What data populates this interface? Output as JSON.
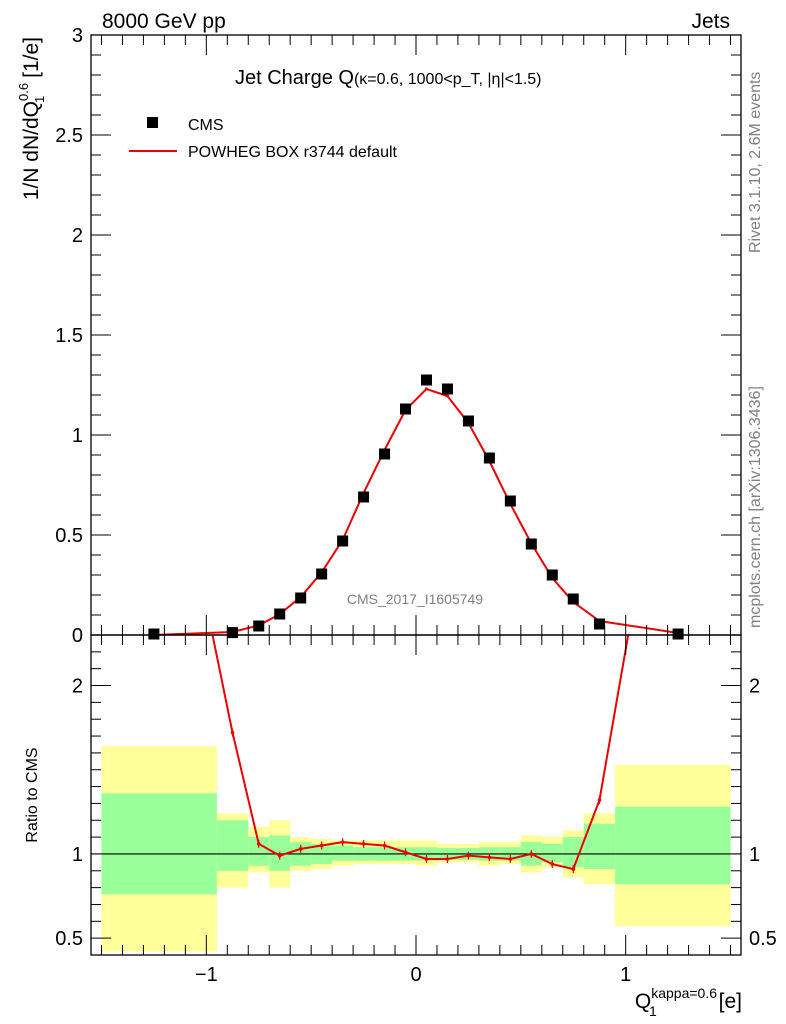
{
  "header": {
    "energy_label": "8000 GeV pp",
    "process_label": "Jets"
  },
  "side_labels": {
    "rivet": "Rivet 3.1.10,  2.6M events",
    "mcplots": "mcplots.cern.ch [arXiv:1306.3436]"
  },
  "watermark": "CMS_2017_I1605749",
  "chart_data": [
    {
      "type": "scatter",
      "panel": "main",
      "title": "Jet Charge Q",
      "title_cuts": "(κ=0.6, 1000<p_T, |η|<1.5)",
      "ylabel": "1/N dN/dQ_1^0.6 [1/e]",
      "xlim": [
        -1.55,
        1.55
      ],
      "ylim": [
        0,
        3
      ],
      "yticks": [
        0,
        0.5,
        1,
        1.5,
        2,
        2.5,
        3
      ],
      "ytick_labels": [
        "0",
        "0.5",
        "1",
        "1.5",
        "2",
        "2.5",
        "3"
      ],
      "legend": [
        "CMS",
        "POWHEG BOX r3744 default"
      ],
      "series": [
        {
          "name": "CMS",
          "marker": "square",
          "color": "#000000",
          "x": [
            -1.25,
            -0.875,
            -0.75,
            -0.65,
            -0.55,
            -0.45,
            -0.35,
            -0.25,
            -0.15,
            -0.05,
            0.05,
            0.15,
            0.25,
            0.35,
            0.45,
            0.55,
            0.65,
            0.75,
            0.875,
            1.25
          ],
          "y": [
            0.005,
            0.012,
            0.045,
            0.105,
            0.185,
            0.305,
            0.47,
            0.69,
            0.905,
            1.13,
            1.275,
            1.23,
            1.07,
            0.885,
            0.67,
            0.455,
            0.3,
            0.18,
            0.055,
            0.005
          ]
        },
        {
          "name": "POWHEG BOX r3744 default",
          "marker": "line",
          "color": "#ee0000",
          "x": [
            -1.25,
            -0.875,
            -0.75,
            -0.65,
            -0.55,
            -0.45,
            -0.35,
            -0.25,
            -0.15,
            -0.05,
            0.05,
            0.15,
            0.25,
            0.35,
            0.45,
            0.55,
            0.65,
            0.75,
            0.875,
            1.25
          ],
          "y": [
            0.0,
            0.015,
            0.048,
            0.104,
            0.19,
            0.313,
            0.475,
            0.71,
            0.925,
            1.125,
            1.23,
            1.195,
            1.06,
            0.87,
            0.655,
            0.458,
            0.285,
            0.165,
            0.07,
            0.01
          ]
        }
      ]
    },
    {
      "type": "line",
      "panel": "ratio",
      "ylabel": "Ratio to CMS",
      "xlabel": "Q_1^kappa=0.6 [e]",
      "xlim": [
        -1.55,
        1.55
      ],
      "ylim": [
        0.4,
        2.3
      ],
      "yticks": [
        0.5,
        1,
        2
      ],
      "ytick_labels": [
        "0.5",
        "1",
        "2"
      ],
      "xticks": [
        -1,
        0,
        1
      ],
      "xtick_labels": [
        "−1",
        "0",
        "1"
      ],
      "reference": 1,
      "bands": {
        "bin_edges": [
          -1.5,
          -0.95,
          -0.8,
          -0.7,
          -0.6,
          -0.5,
          -0.4,
          -0.3,
          -0.2,
          -0.1,
          0.0,
          0.1,
          0.2,
          0.3,
          0.4,
          0.5,
          0.6,
          0.7,
          0.8,
          0.95,
          1.5
        ],
        "inner_lo": [
          0.76,
          0.9,
          0.93,
          0.9,
          0.93,
          0.94,
          0.96,
          0.96,
          0.96,
          0.96,
          0.96,
          0.965,
          0.965,
          0.96,
          0.96,
          0.93,
          0.95,
          0.92,
          0.91,
          0.82
        ],
        "inner_hi": [
          1.36,
          1.2,
          1.1,
          1.11,
          1.07,
          1.06,
          1.05,
          1.04,
          1.04,
          1.04,
          1.04,
          1.035,
          1.035,
          1.04,
          1.04,
          1.07,
          1.06,
          1.1,
          1.18,
          1.28
        ],
        "outer_lo": [
          0.42,
          0.8,
          0.89,
          0.8,
          0.9,
          0.91,
          0.93,
          0.94,
          0.94,
          0.94,
          0.93,
          0.95,
          0.95,
          0.93,
          0.94,
          0.89,
          0.92,
          0.86,
          0.82,
          0.57
        ],
        "outer_hi": [
          1.64,
          1.24,
          1.16,
          1.2,
          1.1,
          1.09,
          1.08,
          1.08,
          1.08,
          1.08,
          1.08,
          1.06,
          1.06,
          1.07,
          1.07,
          1.11,
          1.1,
          1.14,
          1.24,
          1.53
        ]
      },
      "series": [
        {
          "name": "POWHEG BOX r3744 default",
          "color": "#ee0000",
          "x": [
            -1.25,
            -0.875,
            -0.75,
            -0.65,
            -0.55,
            -0.45,
            -0.35,
            -0.25,
            -0.15,
            -0.05,
            0.05,
            0.15,
            0.25,
            0.35,
            0.45,
            0.55,
            0.65,
            0.75,
            0.875,
            1.25
          ],
          "y": [
            4.0,
            1.72,
            1.06,
            0.99,
            1.03,
            1.05,
            1.07,
            1.06,
            1.05,
            1.01,
            0.97,
            0.97,
            0.99,
            0.98,
            0.97,
            1.0,
            0.94,
            0.91,
            1.32,
            4.0
          ]
        }
      ]
    }
  ]
}
